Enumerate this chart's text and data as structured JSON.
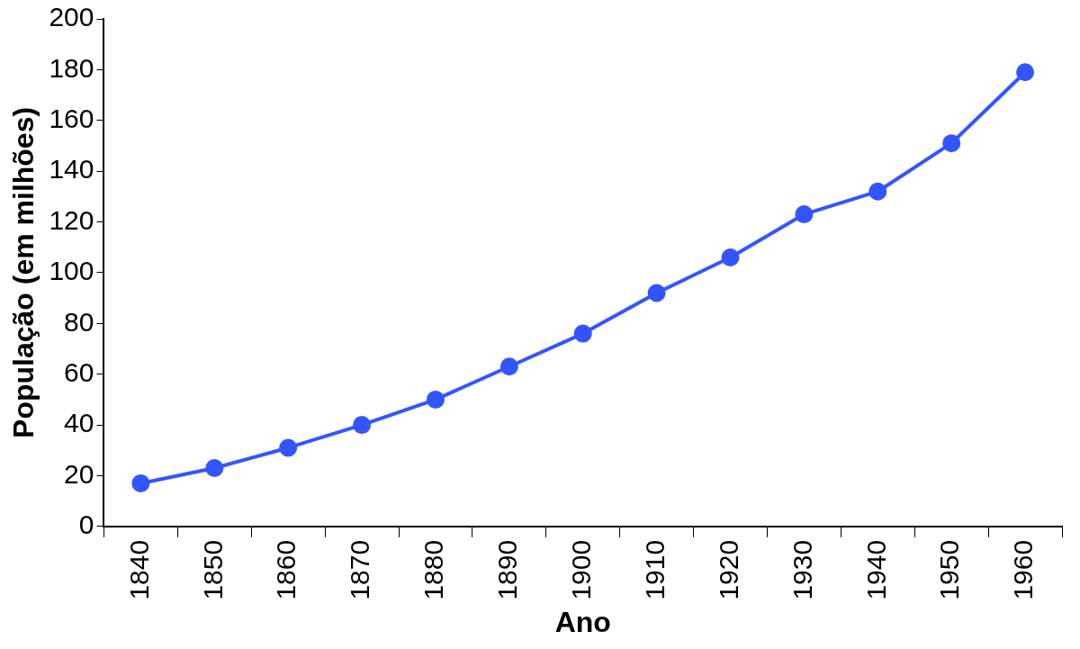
{
  "chart_data": {
    "type": "line",
    "xlabel": "Ano",
    "ylabel": "População (em milhões)",
    "categories": [
      "1840",
      "1850",
      "1860",
      "1870",
      "1880",
      "1890",
      "1900",
      "1910",
      "1920",
      "1930",
      "1940",
      "1950",
      "1960"
    ],
    "series": [
      {
        "color": "#3355ff",
        "values": [
          17,
          23,
          31,
          40,
          50,
          63,
          76,
          92,
          106,
          123,
          132,
          151,
          179
        ]
      }
    ],
    "ylim": [
      0,
      200
    ],
    "yticks": [
      0,
      20,
      40,
      60,
      80,
      100,
      120,
      140,
      160,
      180,
      200
    ],
    "grid": false,
    "legend": false,
    "marker": "circle",
    "line_style": "solid"
  }
}
